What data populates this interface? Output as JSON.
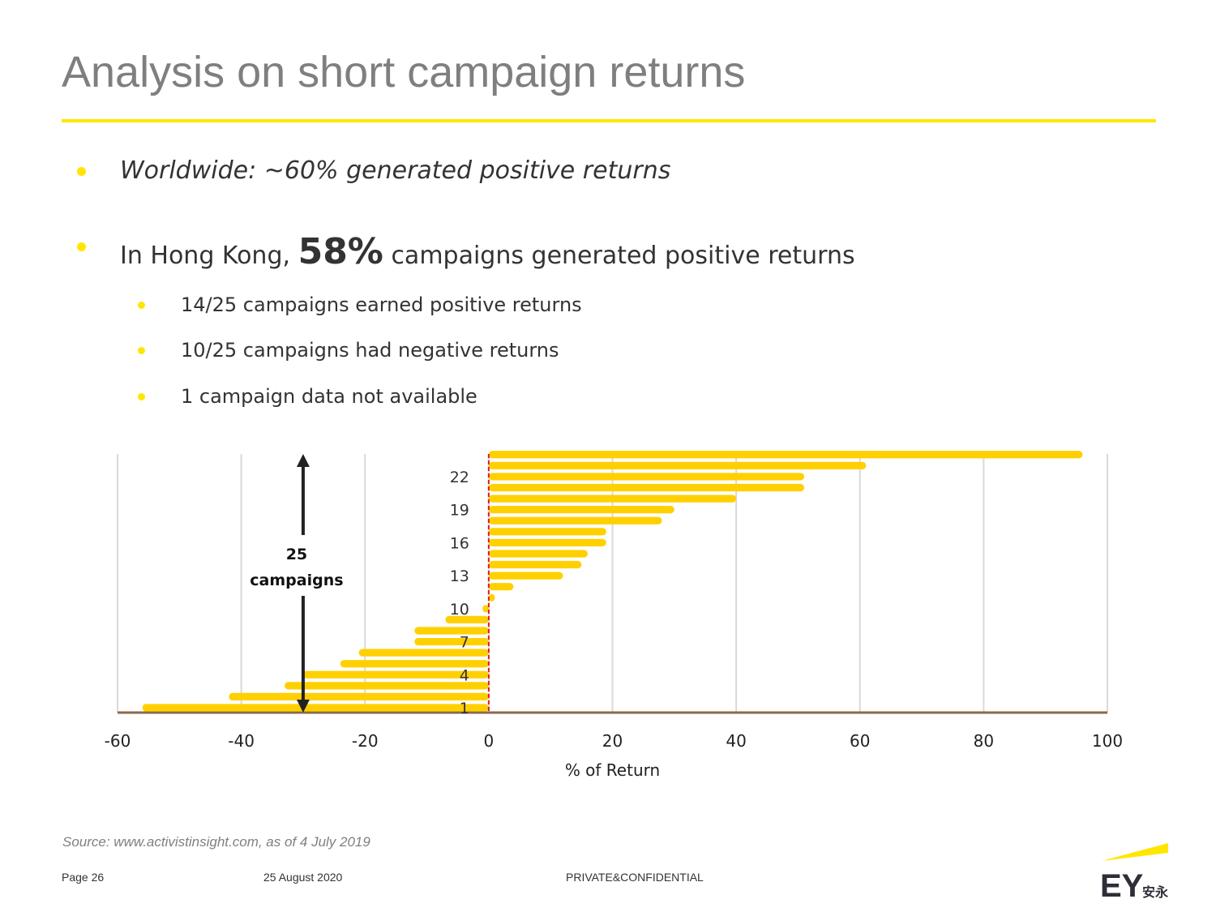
{
  "page": {
    "title": "Analysis on short campaign returns",
    "bullets": {
      "worldwide": "Worldwide: ~60% generated positive returns",
      "hk_prefix": "In Hong Kong, ",
      "hk_highlight": "58%",
      "hk_suffix": " campaigns generated positive returns",
      "sub": [
        "14/25 campaigns earned positive returns",
        "10/25 campaigns had negative returns",
        "1 campaign data not available"
      ]
    },
    "source": "Source:  www.activistinsight.com, as of 4 July 2019",
    "footer": {
      "page": "Page 26",
      "date": "25 August 2020",
      "confidential": "PRIVATE&CONFIDENTIAL"
    },
    "logo_text": "EY",
    "logo_cjk": "安永"
  },
  "colors": {
    "title": "#7f7f7f",
    "accent_yellow": "#ffe600",
    "bar": "#ffd000",
    "zero_line": "#e31b1b",
    "baseline": "#8a6a4a",
    "grid": "#d9d9d9",
    "text": "#333333"
  },
  "chart_data": {
    "type": "bar",
    "orientation": "horizontal",
    "xlabel": "% of Return",
    "xlim": [
      -60,
      100
    ],
    "x_ticks": [
      -60,
      -40,
      -20,
      0,
      20,
      40,
      60,
      80,
      100
    ],
    "categories": [
      1,
      2,
      3,
      4,
      5,
      6,
      7,
      8,
      9,
      10,
      11,
      12,
      13,
      14,
      15,
      16,
      17,
      18,
      19,
      20,
      21,
      22,
      23,
      24
    ],
    "y_tick_labels": [
      "1",
      "4",
      "7",
      "10",
      "13",
      "16",
      "19",
      "22"
    ],
    "values": [
      -56,
      -42,
      -33,
      -30,
      -24,
      -21,
      -12,
      -12,
      -7,
      -1,
      1,
      4,
      12,
      15,
      16,
      19,
      19,
      28,
      30,
      40,
      51,
      51,
      61,
      96
    ],
    "annotation": {
      "count": "25",
      "label": "campaigns"
    },
    "grid": "vertical"
  }
}
